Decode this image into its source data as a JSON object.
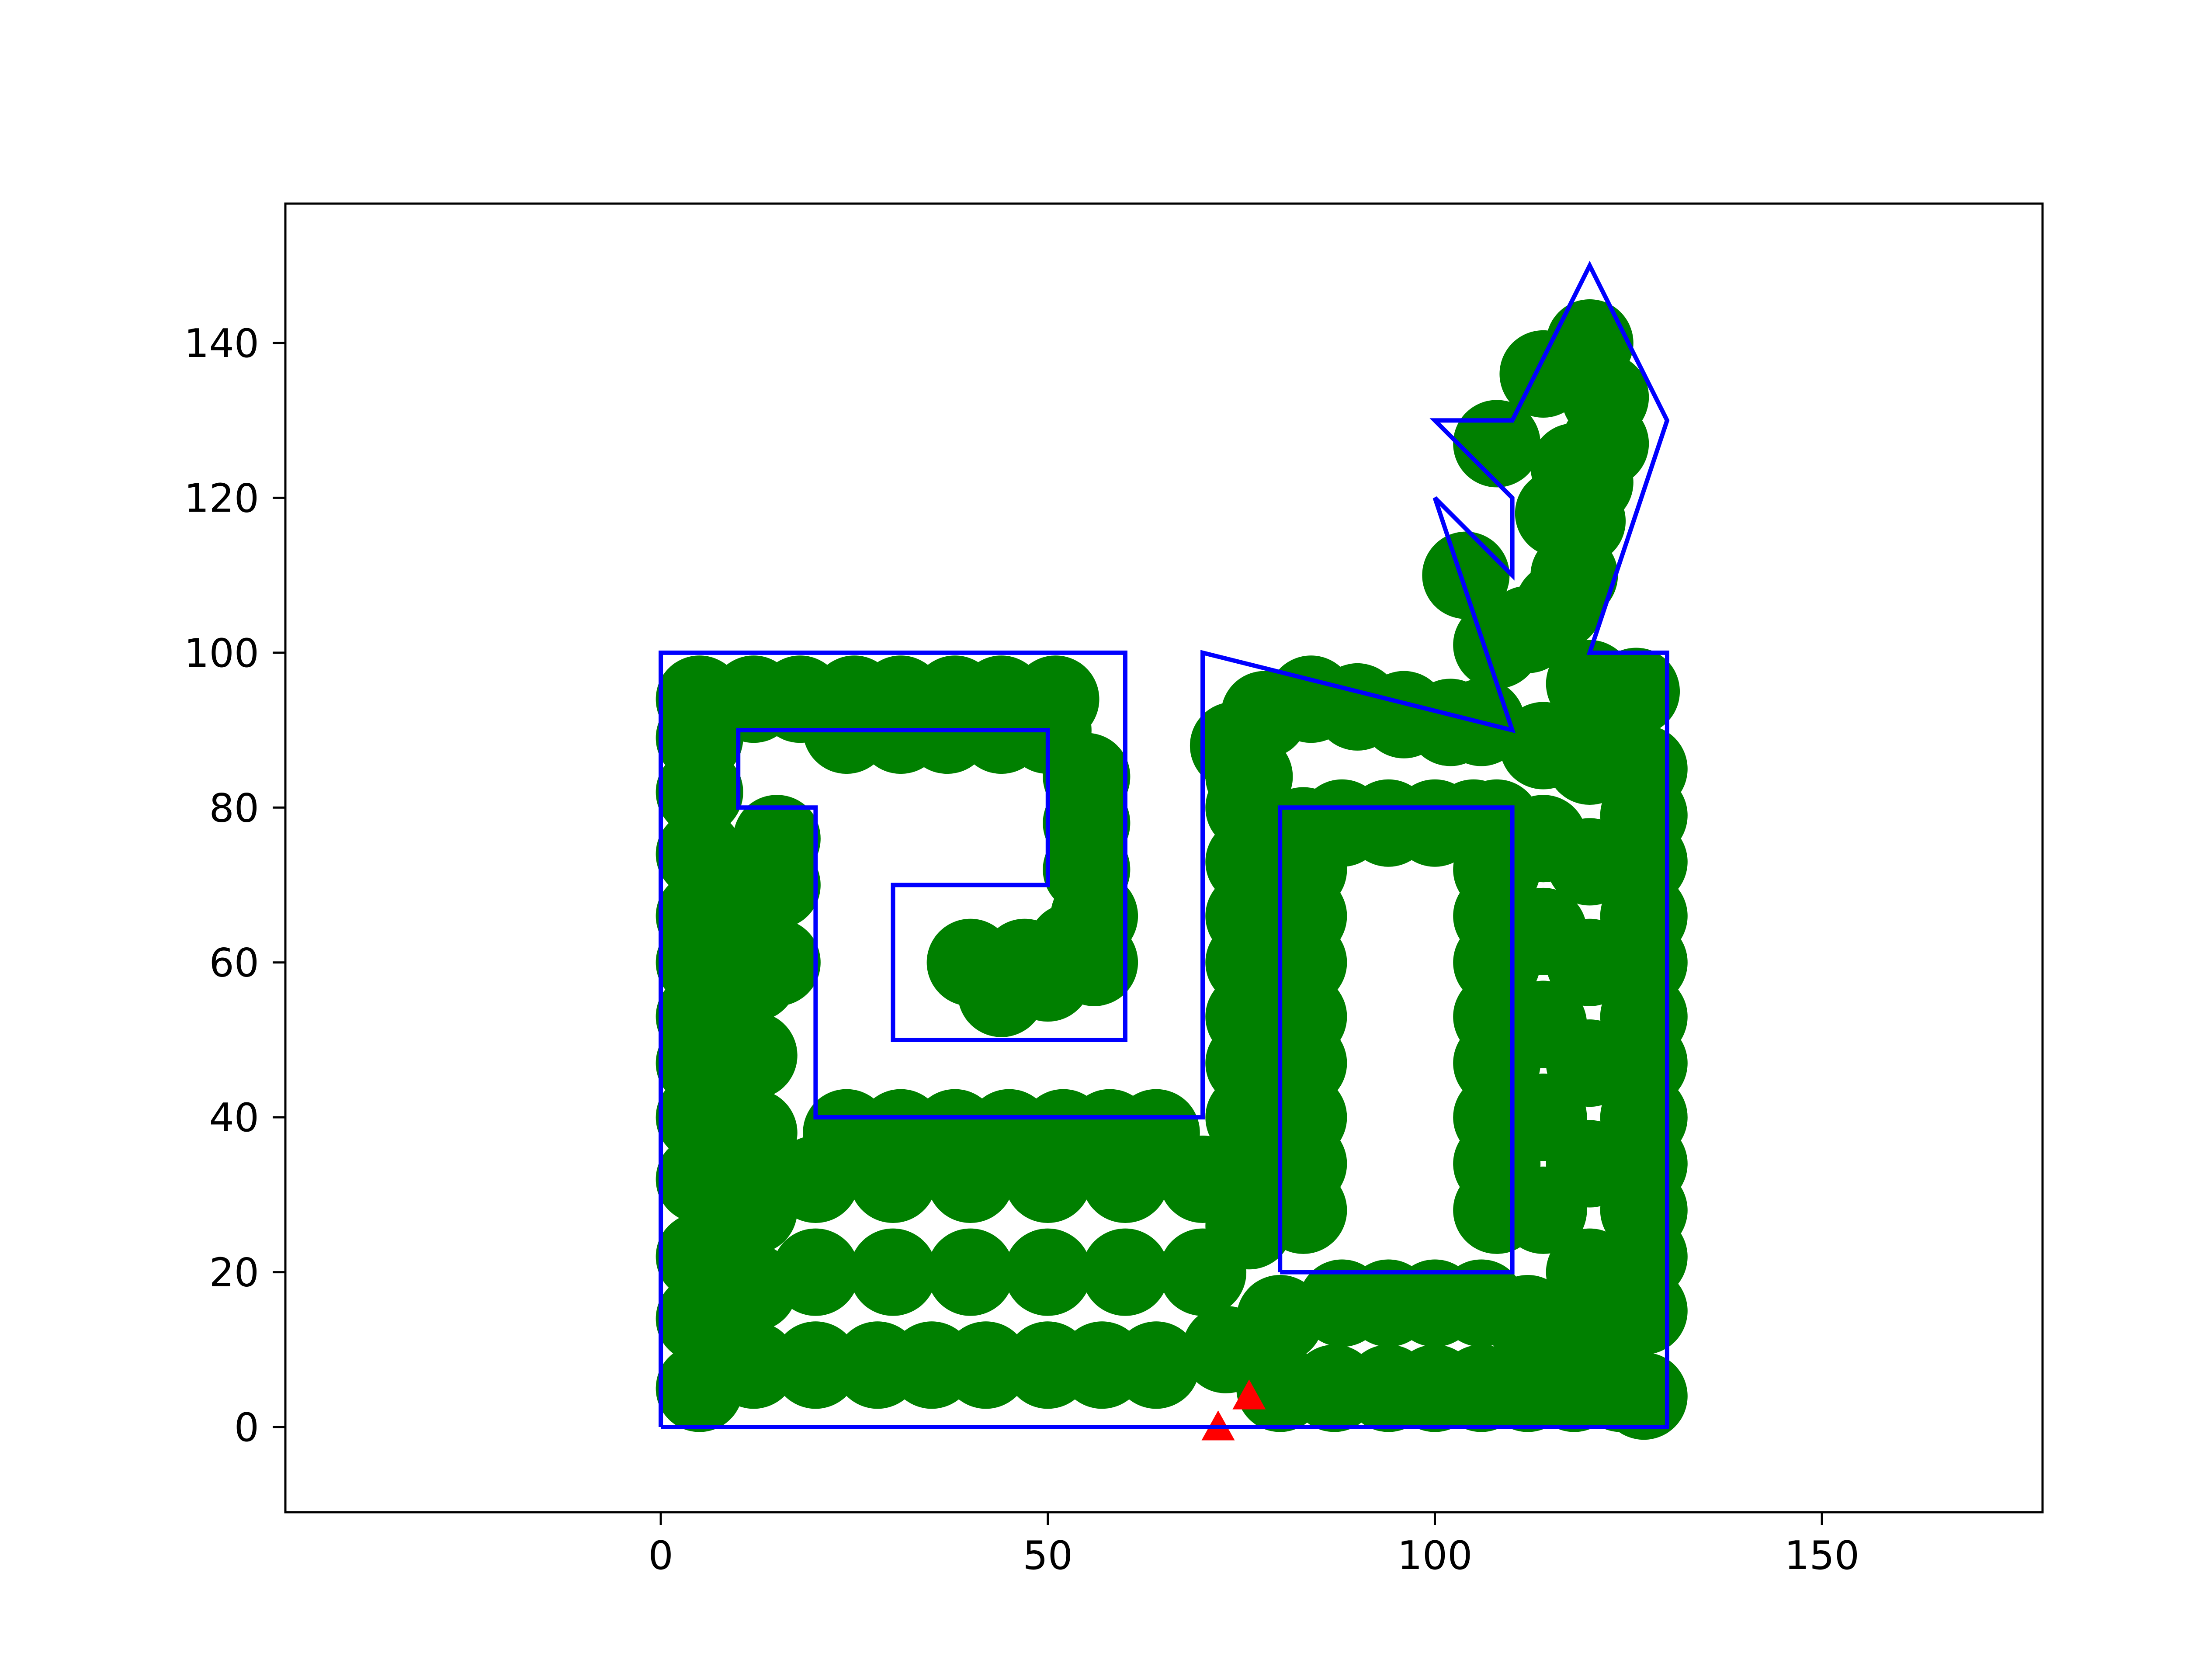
{
  "chart_data": {
    "type": "scatter",
    "title": "",
    "xlabel": "",
    "ylabel": "",
    "xlim": [
      -48.5,
      178.5
    ],
    "ylim": [
      -11,
      158
    ],
    "xticks": [
      0,
      50,
      100,
      150
    ],
    "yticks": [
      0,
      20,
      40,
      60,
      80,
      100,
      120,
      140
    ],
    "xtick_labels": [
      "0",
      "50",
      "100",
      "150"
    ],
    "ytick_labels": [
      "0",
      "20",
      "40",
      "60",
      "80",
      "100",
      "120",
      "140"
    ],
    "grid": false,
    "legend": "none",
    "colors": {
      "coverage": "#008000",
      "boundary": "#0000ff",
      "robot": "#ff0000"
    },
    "boundary_polygon": [
      [
        0,
        0
      ],
      [
        130,
        0
      ],
      [
        130,
        100
      ],
      [
        120,
        100
      ],
      [
        130,
        130
      ],
      [
        120,
        150
      ],
      [
        110,
        130
      ],
      [
        100,
        130
      ],
      [
        110,
        120
      ],
      [
        110,
        110
      ],
      [
        100,
        120
      ],
      [
        110,
        90
      ],
      [
        70,
        100
      ],
      [
        70,
        40
      ],
      [
        20,
        40
      ],
      [
        20,
        80
      ],
      [
        10,
        80
      ],
      [
        10,
        90
      ],
      [
        50,
        90
      ],
      [
        50,
        70
      ],
      [
        30,
        70
      ],
      [
        30,
        50
      ],
      [
        60,
        50
      ],
      [
        60,
        100
      ],
      [
        0,
        100
      ],
      [
        0,
        0
      ]
    ],
    "obstacle_polygon": [
      [
        80,
        20
      ],
      [
        110,
        20
      ],
      [
        110,
        80
      ],
      [
        80,
        80
      ],
      [
        80,
        20
      ]
    ],
    "coverage_points": [
      [
        5,
        5
      ],
      [
        5,
        14
      ],
      [
        5,
        22
      ],
      [
        5,
        32
      ],
      [
        5,
        40
      ],
      [
        5,
        47
      ],
      [
        5,
        53
      ],
      [
        5,
        60
      ],
      [
        5,
        66
      ],
      [
        5,
        74
      ],
      [
        5,
        82
      ],
      [
        5,
        89
      ],
      [
        5,
        94
      ],
      [
        12,
        8
      ],
      [
        12,
        18
      ],
      [
        12,
        28
      ],
      [
        12,
        38
      ],
      [
        12,
        48
      ],
      [
        12,
        58
      ],
      [
        12,
        68
      ],
      [
        12,
        94
      ],
      [
        15,
        60
      ],
      [
        15,
        70
      ],
      [
        15,
        76
      ],
      [
        18,
        94
      ],
      [
        25,
        94
      ],
      [
        31,
        94
      ],
      [
        38,
        94
      ],
      [
        44,
        94
      ],
      [
        51,
        94
      ],
      [
        24,
        90
      ],
      [
        31,
        90
      ],
      [
        37,
        90
      ],
      [
        44,
        90
      ],
      [
        50,
        90
      ],
      [
        55,
        84
      ],
      [
        55,
        78
      ],
      [
        55,
        72
      ],
      [
        56,
        66
      ],
      [
        56,
        60
      ],
      [
        53,
        62
      ],
      [
        50,
        58
      ],
      [
        40,
        60
      ],
      [
        44,
        56
      ],
      [
        47,
        60
      ],
      [
        20,
        8
      ],
      [
        28,
        8
      ],
      [
        35,
        8
      ],
      [
        42,
        8
      ],
      [
        50,
        8
      ],
      [
        57,
        8
      ],
      [
        64,
        8
      ],
      [
        20,
        20
      ],
      [
        30,
        20
      ],
      [
        40,
        20
      ],
      [
        50,
        20
      ],
      [
        60,
        20
      ],
      [
        70,
        20
      ],
      [
        20,
        32
      ],
      [
        30,
        32
      ],
      [
        40,
        32
      ],
      [
        50,
        32
      ],
      [
        60,
        32
      ],
      [
        70,
        32
      ],
      [
        76,
        32
      ],
      [
        24,
        38
      ],
      [
        31,
        38
      ],
      [
        38,
        38
      ],
      [
        45,
        38
      ],
      [
        52,
        38
      ],
      [
        58,
        38
      ],
      [
        64,
        38
      ],
      [
        73,
        10
      ],
      [
        80,
        5
      ],
      [
        87,
        5
      ],
      [
        94,
        5
      ],
      [
        100,
        5
      ],
      [
        106,
        5
      ],
      [
        112,
        5
      ],
      [
        118,
        5
      ],
      [
        124,
        5
      ],
      [
        127,
        4
      ],
      [
        80,
        14
      ],
      [
        88,
        16
      ],
      [
        94,
        16
      ],
      [
        100,
        16
      ],
      [
        106,
        16
      ],
      [
        112,
        14
      ],
      [
        118,
        14
      ],
      [
        124,
        14
      ],
      [
        127,
        15
      ],
      [
        76,
        26
      ],
      [
        76,
        40
      ],
      [
        76,
        47
      ],
      [
        76,
        53
      ],
      [
        76,
        60
      ],
      [
        76,
        66
      ],
      [
        76,
        73
      ],
      [
        76,
        80
      ],
      [
        76,
        84
      ],
      [
        74,
        88
      ],
      [
        78,
        92
      ],
      [
        84,
        94
      ],
      [
        90,
        93
      ],
      [
        96,
        92
      ],
      [
        102,
        91
      ],
      [
        106,
        91
      ],
      [
        83,
        28
      ],
      [
        83,
        34
      ],
      [
        83,
        40
      ],
      [
        83,
        47
      ],
      [
        83,
        53
      ],
      [
        83,
        60
      ],
      [
        83,
        66
      ],
      [
        83,
        72
      ],
      [
        83,
        77
      ],
      [
        88,
        78
      ],
      [
        94,
        78
      ],
      [
        100,
        78
      ],
      [
        105,
        78
      ],
      [
        108,
        78
      ],
      [
        108,
        72
      ],
      [
        108,
        66
      ],
      [
        108,
        60
      ],
      [
        108,
        53
      ],
      [
        108,
        47
      ],
      [
        108,
        40
      ],
      [
        108,
        34
      ],
      [
        108,
        28
      ],
      [
        114,
        28
      ],
      [
        114,
        40
      ],
      [
        114,
        52
      ],
      [
        114,
        64
      ],
      [
        114,
        76
      ],
      [
        114,
        88
      ],
      [
        120,
        20
      ],
      [
        120,
        34
      ],
      [
        120,
        47
      ],
      [
        120,
        60
      ],
      [
        120,
        73
      ],
      [
        120,
        86
      ],
      [
        120,
        96
      ],
      [
        127,
        22
      ],
      [
        127,
        28
      ],
      [
        127,
        34
      ],
      [
        127,
        40
      ],
      [
        127,
        47
      ],
      [
        127,
        53
      ],
      [
        127,
        60
      ],
      [
        127,
        66
      ],
      [
        127,
        73
      ],
      [
        127,
        79
      ],
      [
        127,
        85
      ],
      [
        126,
        95
      ],
      [
        108,
        101
      ],
      [
        112,
        103
      ],
      [
        116,
        106
      ],
      [
        118,
        110
      ],
      [
        119,
        117
      ],
      [
        120,
        122
      ],
      [
        122,
        127
      ],
      [
        122,
        133
      ],
      [
        120,
        140
      ],
      [
        114,
        136
      ],
      [
        104,
        110
      ],
      [
        108,
        127
      ],
      [
        116,
        118
      ],
      [
        118,
        124
      ]
    ],
    "robot_markers": [
      [
        72,
        0
      ],
      [
        76,
        4
      ]
    ]
  }
}
